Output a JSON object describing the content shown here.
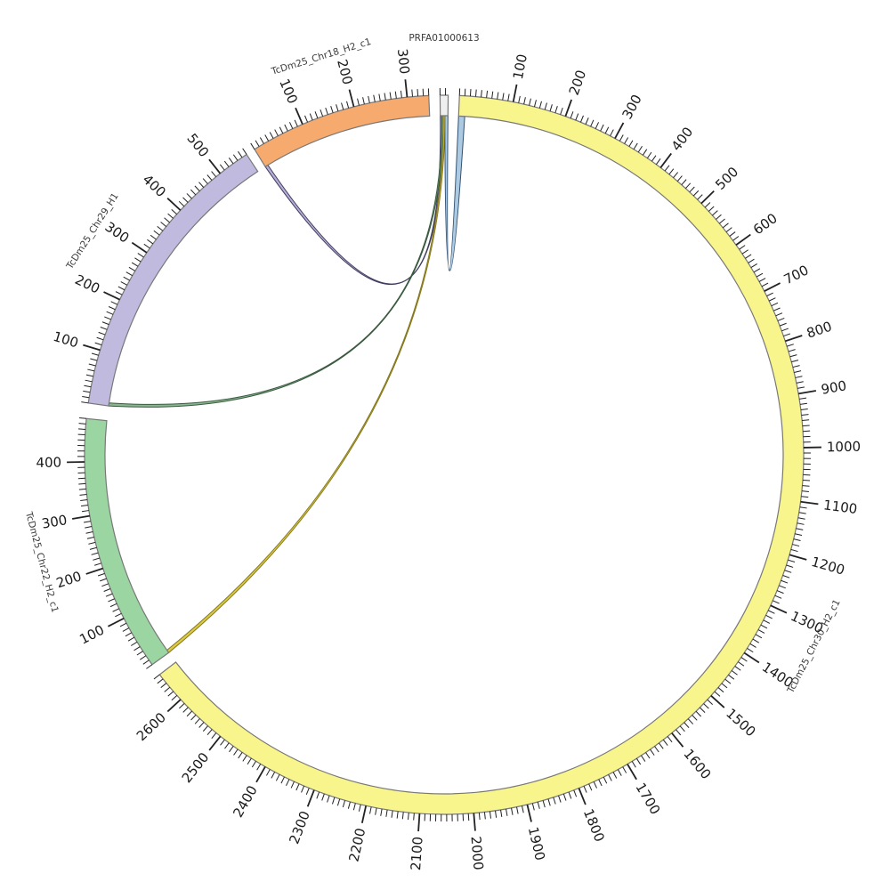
{
  "chart_data": {
    "type": "circos",
    "background": "#ffffff",
    "outline_color": "#787878",
    "tick_color": "#222222",
    "tick_label_color": "#1a1a1a",
    "segment_label_color": "#3a3a3a",
    "ticks": {
      "minor_interval": 10,
      "major_interval": 100
    },
    "segments": [
      {
        "name": "PRFA01000613",
        "length": 15,
        "color": "#efefef"
      },
      {
        "name": "TcDm25_Chr30_H2_c1",
        "length": 2660,
        "color": "#F9F58D"
      },
      {
        "name": "TcDm25_Chr22_H2_c1",
        "length": 480,
        "color": "#9BD5A2"
      },
      {
        "name": "TcDm25_Chr29_H1",
        "length": 560,
        "color": "#C0BADE"
      },
      {
        "name": "TcDm25_Chr18_H2_c1",
        "length": 340,
        "color": "#F6AA6E"
      }
    ],
    "tick_labels": {
      "TcDm25_Chr30_H2_c1": [
        100,
        200,
        300,
        400,
        500,
        600,
        700,
        800,
        900,
        1000,
        1100,
        1200,
        1300,
        1400,
        1500,
        1600,
        1700,
        1800,
        1900,
        2000,
        2100,
        2200,
        2300,
        2400,
        2500,
        2600
      ],
      "TcDm25_Chr22_H2_c1": [
        100,
        200,
        300,
        400
      ],
      "TcDm25_Chr29_H1": [
        100,
        200,
        300,
        400,
        500
      ],
      "TcDm25_Chr18_H2_c1": [
        100,
        200,
        300
      ]
    },
    "links": [
      {
        "source": "PRFA01000613",
        "source_start": 9,
        "source_end": 15,
        "target": "TcDm25_Chr30_H2_c1",
        "target_start": 0,
        "target_end": 12,
        "fill": "#A8C8E2",
        "stroke": "#2F4F6F"
      },
      {
        "source": "PRFA01000613",
        "source_start": 0,
        "source_end": 3,
        "target": "TcDm25_Chr18_H2_c1",
        "target_start": 0,
        "target_end": 6,
        "fill": "#B3ABD3",
        "stroke": "#3F3C5F"
      },
      {
        "source": "PRFA01000613",
        "source_start": 3,
        "source_end": 6,
        "target": "TcDm25_Chr29_H1",
        "target_start": 0,
        "target_end": 6,
        "fill": "#82B289",
        "stroke": "#3A5A40"
      },
      {
        "source": "PRFA01000613",
        "source_start": 6,
        "source_end": 9,
        "target": "TcDm25_Chr22_H2_c1",
        "target_start": 0,
        "target_end": 6,
        "fill": "#D9C838",
        "stroke": "#85781E"
      }
    ]
  }
}
